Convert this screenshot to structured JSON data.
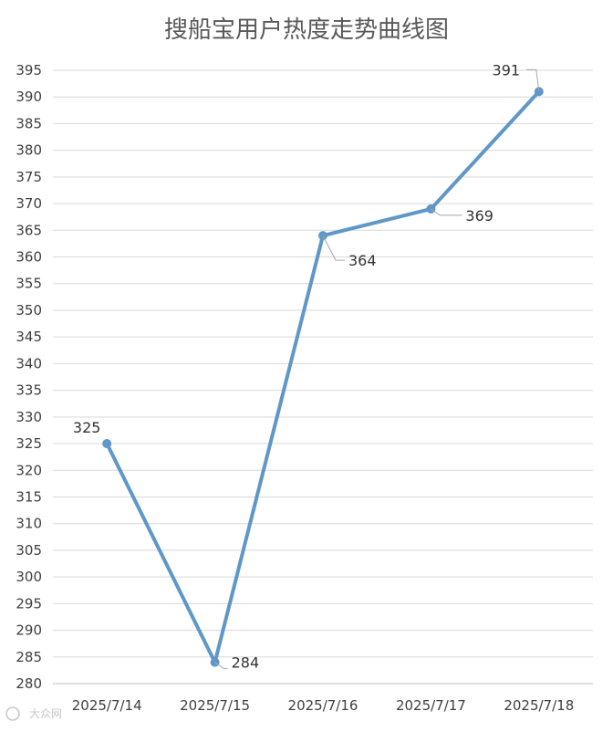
{
  "chart_data": {
    "type": "line",
    "title": "搜船宝用户热度走势曲线图",
    "xlabel": "",
    "ylabel": "",
    "categories": [
      "2025/7/14",
      "2025/7/15",
      "2025/7/16",
      "2025/7/17",
      "2025/7/18"
    ],
    "series": [
      {
        "values": [
          325,
          284,
          364,
          369,
          391
        ],
        "color": "#5f97c8"
      }
    ],
    "ylim": [
      280,
      395
    ],
    "ytick_step": 5,
    "grid": true,
    "legend": "none",
    "data_labels": [
      "325",
      "284",
      "364",
      "369",
      "391"
    ]
  },
  "watermark": "大众网"
}
